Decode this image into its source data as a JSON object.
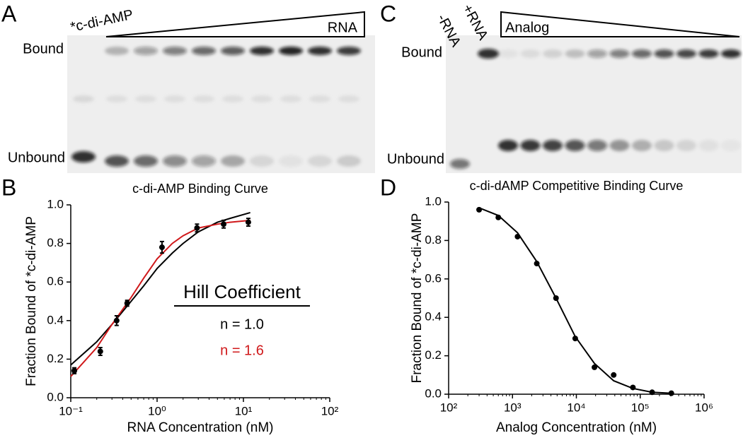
{
  "panels": {
    "a": {
      "letter": "A",
      "lane_label": "*c-di-AMP",
      "gradient_label": "RNA",
      "bound": "Bound",
      "unbound": "Unbound"
    },
    "b": {
      "letter": "B"
    },
    "c": {
      "letter": "C",
      "minus_label": "-RNA",
      "plus_label": "+RNA",
      "gradient_label": "Analog",
      "bound": "Bound",
      "unbound": "Unbound"
    },
    "d": {
      "letter": "D"
    }
  },
  "chart_data": [
    {
      "type": "scatter",
      "title": "c-di-AMP Binding Curve",
      "x_label": "RNA Concentration (nM)",
      "y_label": "Fraction Bound of *c-di-AMP",
      "x_scale": "log",
      "color": "#000000",
      "x": [
        0.11,
        0.22,
        0.34,
        0.45,
        1.14,
        2.9,
        5.9,
        11.4
      ],
      "values": [
        0.14,
        0.24,
        0.4,
        0.49,
        0.78,
        0.88,
        0.9,
        0.91
      ],
      "errors": [
        0.015,
        0.02,
        0.025,
        0.015,
        0.03,
        0.02,
        0.02,
        0.02
      ],
      "legend_title": "Hill Coefficient",
      "series": [
        {
          "name": "n = 1.0",
          "color": "#000000",
          "x": [
            0.1,
            0.2,
            0.3,
            0.5,
            0.7,
            1,
            1.5,
            2,
            3,
            5,
            7,
            12
          ],
          "values": [
            0.17,
            0.29,
            0.38,
            0.5,
            0.58,
            0.67,
            0.75,
            0.8,
            0.86,
            0.91,
            0.93,
            0.96
          ]
        },
        {
          "name": "n = 1.6",
          "color": "#d0191b",
          "x": [
            0.1,
            0.2,
            0.3,
            0.5,
            0.7,
            1,
            1.5,
            2,
            3,
            5,
            7,
            12
          ],
          "values": [
            0.11,
            0.26,
            0.38,
            0.52,
            0.62,
            0.72,
            0.8,
            0.84,
            0.88,
            0.9,
            0.91,
            0.92
          ]
        }
      ],
      "xlim": [
        0.1,
        100
      ],
      "xticks": [
        {
          "value": 0.1,
          "label": "10⁻¹"
        },
        {
          "value": 1,
          "label": "10⁰"
        },
        {
          "value": 10,
          "label": "10¹"
        },
        {
          "value": 100,
          "label": "10²"
        }
      ],
      "ylim": [
        0,
        1
      ],
      "yticks": [
        {
          "value": 0,
          "label": "0.0"
        },
        0.2,
        0.4,
        0.6,
        0.8,
        {
          "value": 1,
          "label": "1.0"
        }
      ]
    },
    {
      "type": "scatter",
      "title": "c-di-dAMP Competitive Binding Curve",
      "x_label": "Analog Concentration (nM)",
      "y_label": "Fraction Bound of *c-di-AMP",
      "x_scale": "log",
      "color": "#000000",
      "x": [
        300,
        600,
        1200,
        2400,
        4800,
        9600,
        19200,
        38400,
        76800,
        153600,
        307200
      ],
      "values": [
        0.96,
        0.92,
        0.82,
        0.68,
        0.5,
        0.29,
        0.14,
        0.1,
        0.035,
        0.01,
        0.005
      ],
      "series": [
        {
          "color": "#000000",
          "x": [
            300,
            600,
            1200,
            2400,
            4800,
            9600,
            19200,
            38400,
            76800,
            153600,
            300000
          ],
          "values": [
            0.97,
            0.93,
            0.84,
            0.69,
            0.5,
            0.3,
            0.16,
            0.07,
            0.03,
            0.01,
            0.005
          ]
        }
      ],
      "xlim": [
        100,
        1000000
      ],
      "xticks": [
        {
          "value": 100,
          "label": "10²"
        },
        {
          "value": 1000,
          "label": "10³"
        },
        {
          "value": 10000,
          "label": "10⁴"
        },
        {
          "value": 100000,
          "label": "10⁵"
        },
        {
          "value": 1000000,
          "label": "10⁶"
        }
      ],
      "ylim": [
        0,
        1
      ],
      "yticks": [
        {
          "value": 0,
          "label": "0.0"
        },
        0.2,
        0.4,
        0.6,
        0.8,
        {
          "value": 1,
          "label": "1.0"
        }
      ]
    }
  ]
}
